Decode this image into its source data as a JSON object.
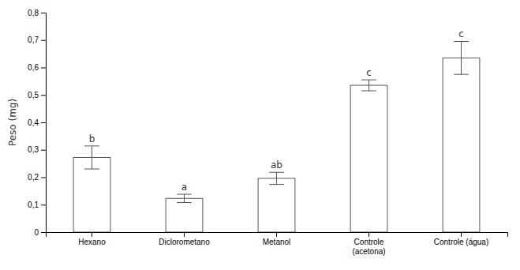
{
  "chart_data": {
    "type": "bar",
    "categories": [
      "Hexano",
      "Diclorometano",
      "Metanol",
      "Controle\n(acetona)",
      "Controle (água)"
    ],
    "values": [
      0.272,
      0.123,
      0.196,
      0.535,
      0.635
    ],
    "errors": [
      0.042,
      0.015,
      0.022,
      0.02,
      0.06
    ],
    "annotations": [
      "b",
      "a",
      "ab",
      "c",
      "c"
    ],
    "ylabel": "Peso (mg)",
    "color": "#ffffff",
    "ylim": [
      0,
      0.8
    ],
    "yticks": [
      0,
      {
        "value": 0.1,
        "label": "0,1"
      },
      {
        "value": 0.2,
        "label": "0,2"
      },
      {
        "value": 0.3,
        "label": "0,3"
      },
      {
        "value": 0.4,
        "label": "0,4"
      },
      {
        "value": 0.5,
        "label": "0,5"
      },
      {
        "value": 0.6,
        "label": "0,6"
      },
      {
        "value": 0.7,
        "label": "0,7"
      },
      {
        "value": 0.8,
        "label": "0,8"
      }
    ],
    "grid": false
  }
}
